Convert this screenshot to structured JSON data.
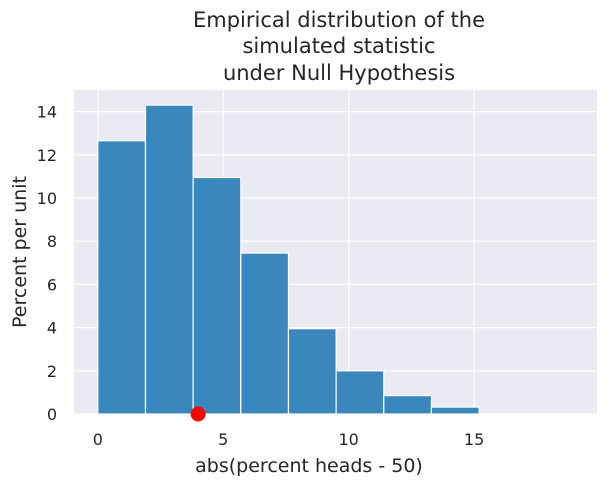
{
  "colors": {
    "plot_background": "#eaeaf2",
    "grid": "#ffffff",
    "bar_fill": "#3a87bd",
    "bar_edge": "#ffffff",
    "observed_marker": "#ff0000"
  },
  "chart_data": {
    "type": "bar",
    "title_lines": [
      "Empirical distribution of the",
      "simulated statistic",
      "under Null Hypothesis"
    ],
    "xlabel": "abs(percent heads - 50)",
    "ylabel": "Percent per unit",
    "xlim": [
      -0.95,
      19.9
    ],
    "ylim": [
      0,
      15
    ],
    "xticks": [
      0,
      5,
      10,
      15
    ],
    "yticks": [
      0,
      2,
      4,
      6,
      8,
      10,
      12,
      14
    ],
    "grid": true,
    "bins": [
      {
        "left": 0,
        "right": 1.9,
        "value": 12.65
      },
      {
        "left": 1.9,
        "right": 3.8,
        "value": 14.3
      },
      {
        "left": 3.8,
        "right": 5.7,
        "value": 10.95
      },
      {
        "left": 5.7,
        "right": 7.6,
        "value": 7.45
      },
      {
        "left": 7.6,
        "right": 9.5,
        "value": 3.95
      },
      {
        "left": 9.5,
        "right": 11.4,
        "value": 2.0
      },
      {
        "left": 11.4,
        "right": 13.3,
        "value": 0.85
      },
      {
        "left": 13.3,
        "right": 15.2,
        "value": 0.32
      }
    ],
    "observed_point": {
      "x": 4,
      "y": 0
    }
  }
}
